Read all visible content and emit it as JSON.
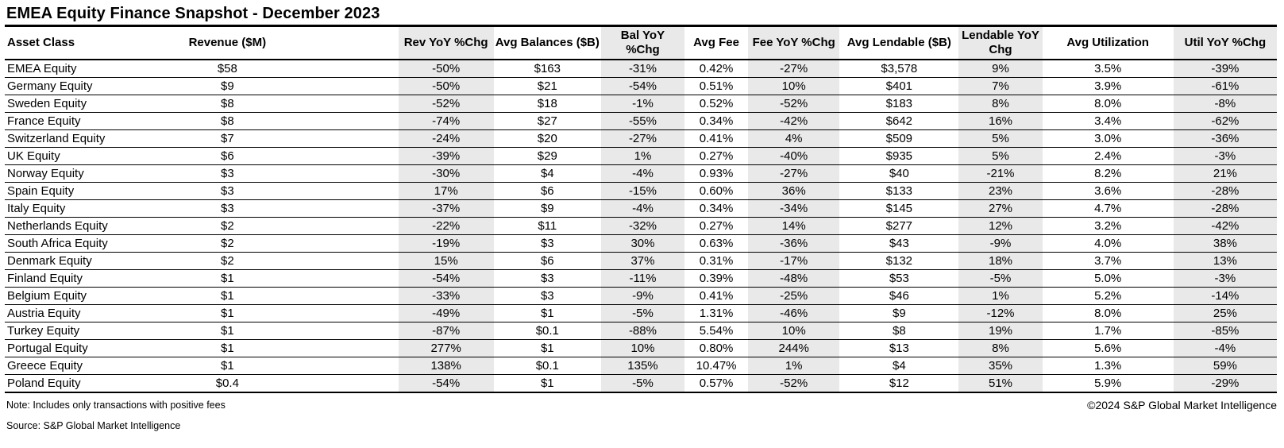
{
  "title": "EMEA Equity Finance Snapshot - December 2023",
  "colors": {
    "shaded_column_bg": "#e9e9e9",
    "border": "#000000",
    "text": "#000000",
    "background": "#ffffff"
  },
  "table": {
    "headers": [
      "Asset Class",
      "Revenue ($M)",
      "Rev YoY %Chg",
      "Avg Balances ($B)",
      "Bal YoY %Chg",
      "Avg Fee",
      "Fee YoY %Chg",
      "Avg Lendable ($B)",
      "Lendable YoY Chg",
      "Avg Utilization",
      "Util YoY %Chg"
    ],
    "rows": [
      [
        "EMEA Equity",
        "$58",
        "-50%",
        "$163",
        "-31%",
        "0.42%",
        "-27%",
        "$3,578",
        "9%",
        "3.5%",
        "-39%"
      ],
      [
        "Germany Equity",
        "$9",
        "-50%",
        "$21",
        "-54%",
        "0.51%",
        "10%",
        "$401",
        "7%",
        "3.9%",
        "-61%"
      ],
      [
        "Sweden Equity",
        "$8",
        "-52%",
        "$18",
        "-1%",
        "0.52%",
        "-52%",
        "$183",
        "8%",
        "8.0%",
        "-8%"
      ],
      [
        "France Equity",
        "$8",
        "-74%",
        "$27",
        "-55%",
        "0.34%",
        "-42%",
        "$642",
        "16%",
        "3.4%",
        "-62%"
      ],
      [
        "Switzerland Equity",
        "$7",
        "-24%",
        "$20",
        "-27%",
        "0.41%",
        "4%",
        "$509",
        "5%",
        "3.0%",
        "-36%"
      ],
      [
        "UK Equity",
        "$6",
        "-39%",
        "$29",
        "1%",
        "0.27%",
        "-40%",
        "$935",
        "5%",
        "2.4%",
        "-3%"
      ],
      [
        "Norway Equity",
        "$3",
        "-30%",
        "$4",
        "-4%",
        "0.93%",
        "-27%",
        "$40",
        "-21%",
        "8.2%",
        "21%"
      ],
      [
        "Spain Equity",
        "$3",
        "17%",
        "$6",
        "-15%",
        "0.60%",
        "36%",
        "$133",
        "23%",
        "3.6%",
        "-28%"
      ],
      [
        "Italy Equity",
        "$3",
        "-37%",
        "$9",
        "-4%",
        "0.34%",
        "-34%",
        "$145",
        "27%",
        "4.7%",
        "-28%"
      ],
      [
        "Netherlands Equity",
        "$2",
        "-22%",
        "$11",
        "-32%",
        "0.27%",
        "14%",
        "$277",
        "12%",
        "3.2%",
        "-42%"
      ],
      [
        "South Africa Equity",
        "$2",
        "-19%",
        "$3",
        "30%",
        "0.63%",
        "-36%",
        "$43",
        "-9%",
        "4.0%",
        "38%"
      ],
      [
        "Denmark Equity",
        "$2",
        "15%",
        "$6",
        "37%",
        "0.31%",
        "-17%",
        "$132",
        "18%",
        "3.7%",
        "13%"
      ],
      [
        "Finland Equity",
        "$1",
        "-54%",
        "$3",
        "-11%",
        "0.39%",
        "-48%",
        "$53",
        "-5%",
        "5.0%",
        "-3%"
      ],
      [
        "Belgium Equity",
        "$1",
        "-33%",
        "$3",
        "-9%",
        "0.41%",
        "-25%",
        "$46",
        "1%",
        "5.2%",
        "-14%"
      ],
      [
        "Austria Equity",
        "$1",
        "-49%",
        "$1",
        "-5%",
        "1.31%",
        "-46%",
        "$9",
        "-12%",
        "8.0%",
        "25%"
      ],
      [
        "Turkey Equity",
        "$1",
        "-87%",
        "$0.1",
        "-88%",
        "5.54%",
        "10%",
        "$8",
        "19%",
        "1.7%",
        "-85%"
      ],
      [
        "Portugal Equity",
        "$1",
        "277%",
        "$1",
        "10%",
        "0.80%",
        "244%",
        "$13",
        "8%",
        "5.6%",
        "-4%"
      ],
      [
        "Greece Equity",
        "$1",
        "138%",
        "$0.1",
        "135%",
        "10.47%",
        "1%",
        "$4",
        "35%",
        "1.3%",
        "59%"
      ],
      [
        "Poland Equity",
        "$0.4",
        "-54%",
        "$1",
        "-5%",
        "0.57%",
        "-52%",
        "$12",
        "51%",
        "5.9%",
        "-29%"
      ]
    ]
  },
  "footer": {
    "note": "Note: Includes only transactions with positive fees",
    "source": "Source: S&P Global Market Intelligence",
    "copyright": "©2024 S&P Global Market Intelligence"
  }
}
